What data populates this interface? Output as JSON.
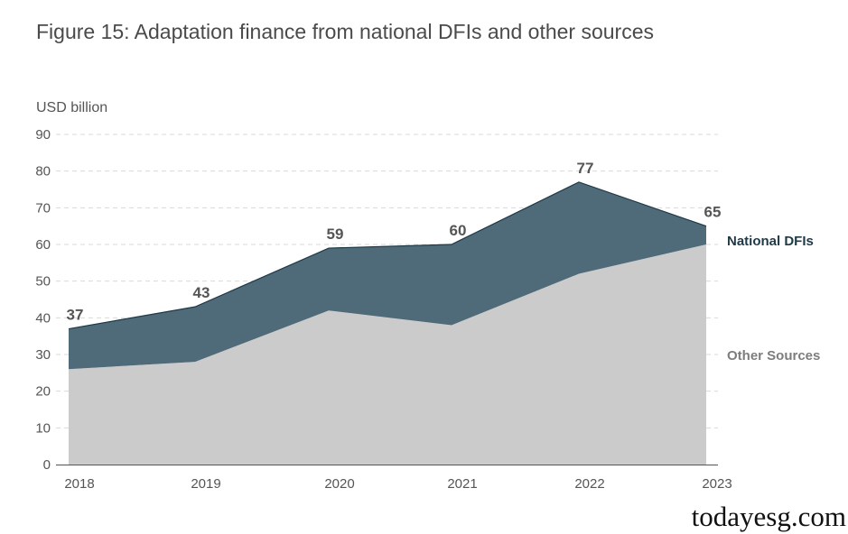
{
  "title": "Figure 15: Adaptation finance from national DFIs and other sources",
  "watermark": "todayesg.com",
  "chart_data": {
    "type": "area",
    "stacked": true,
    "ylabel": "USD billion",
    "ylim": [
      0,
      90
    ],
    "yticks": [
      0,
      10,
      20,
      30,
      40,
      50,
      60,
      70,
      80,
      90
    ],
    "grid": true,
    "x": [
      "2018",
      "2019",
      "2020",
      "2021",
      "2022",
      "2023"
    ],
    "series": [
      {
        "name": "Other Sources",
        "values": [
          26,
          28,
          42,
          38,
          52,
          60
        ],
        "color": "#cccbcb"
      },
      {
        "name": "National DFIs",
        "values": [
          11,
          15,
          17,
          22,
          25,
          5
        ],
        "color": "#4f6a78"
      }
    ],
    "totals": [
      37,
      43,
      59,
      60,
      77,
      65
    ],
    "total_labels": [
      "37",
      "43",
      "59",
      "60",
      "77",
      "65"
    ],
    "legend": [
      {
        "label": "National DFIs",
        "color": "#1f3947"
      },
      {
        "label": "Other Sources",
        "color": "#7d7d7d"
      }
    ]
  }
}
